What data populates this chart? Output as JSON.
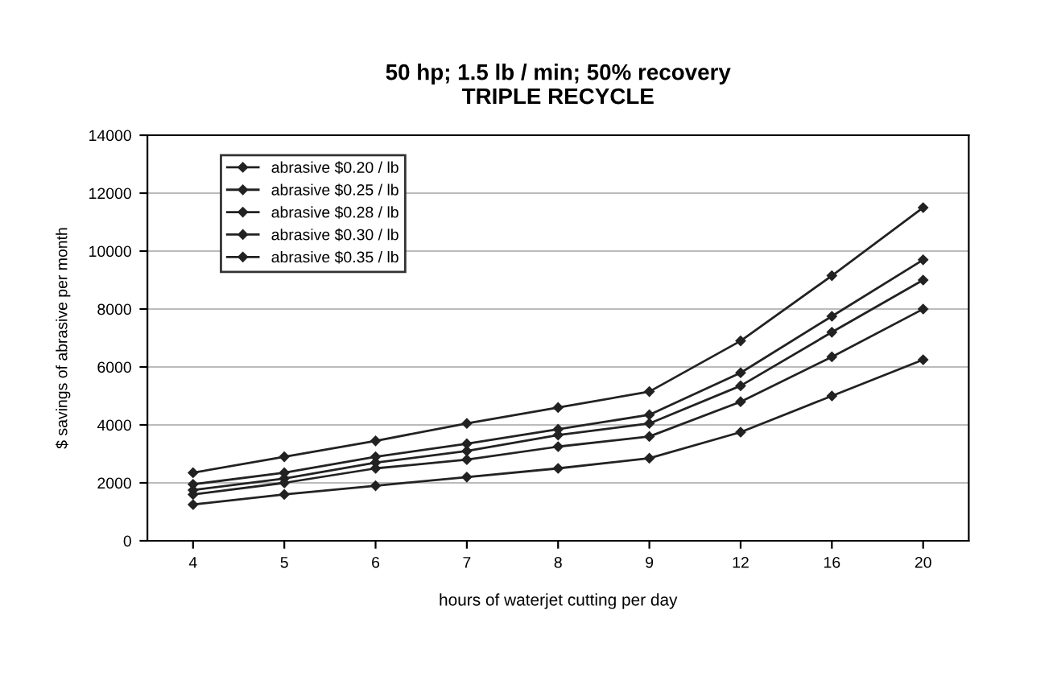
{
  "chart_data": {
    "type": "line",
    "title": "50 hp; 1.5 lb / min; 50% recovery\nTRIPLE RECYCLE",
    "xlabel": "hours of waterjet cutting per day",
    "ylabel": "$ savings of abrasive per month",
    "categories": [
      "4",
      "5",
      "6",
      "7",
      "8",
      "9",
      "12",
      "16",
      "20"
    ],
    "series": [
      {
        "name": "abrasive $0.20 / lb",
        "color": "#222222",
        "values": [
          1250,
          1600,
          1900,
          2200,
          2500,
          2850,
          3750,
          5000,
          6250
        ]
      },
      {
        "name": "abrasive $0.25 / lb",
        "color": "#222222",
        "values": [
          1600,
          2000,
          2500,
          2800,
          3250,
          3600,
          4800,
          6350,
          8000
        ]
      },
      {
        "name": "abrasive $0.28 / lb",
        "color": "#222222",
        "values": [
          1750,
          2150,
          2700,
          3100,
          3650,
          4050,
          5350,
          7200,
          9000
        ]
      },
      {
        "name": "abrasive $0.30 / lb",
        "color": "#222222",
        "values": [
          1950,
          2350,
          2900,
          3350,
          3850,
          4350,
          5800,
          7750,
          9700
        ]
      },
      {
        "name": "abrasive $0.35 / lb",
        "color": "#222222",
        "values": [
          2350,
          2900,
          3450,
          4050,
          4600,
          5150,
          6900,
          9150,
          11500
        ]
      }
    ],
    "ylim": [
      0,
      14000
    ],
    "yticks": [
      0,
      2000,
      4000,
      6000,
      8000,
      10000,
      12000,
      14000
    ],
    "grid": "y",
    "legend": "top left",
    "marker": "diamond",
    "line_style": "solid"
  }
}
